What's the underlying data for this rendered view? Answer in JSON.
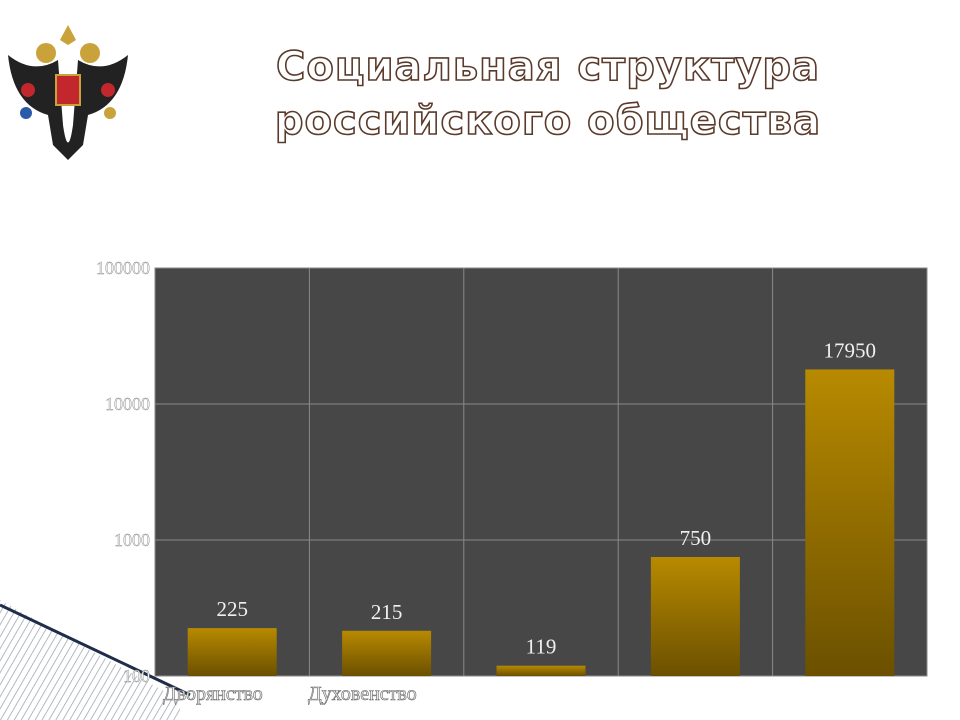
{
  "slide": {
    "title_lines": [
      "Социальная структура",
      "российского общества"
    ]
  },
  "chart_data": {
    "type": "bar",
    "categories": [
      "Дворянство",
      "Духовенство",
      null,
      null,
      null
    ],
    "values": [
      225,
      215,
      119,
      750,
      17950
    ],
    "color": "#b88a00",
    "ylim": [
      100,
      100000
    ],
    "yticks": [
      100,
      1000,
      10000,
      100000
    ],
    "log_scale": true,
    "grid": true
  }
}
